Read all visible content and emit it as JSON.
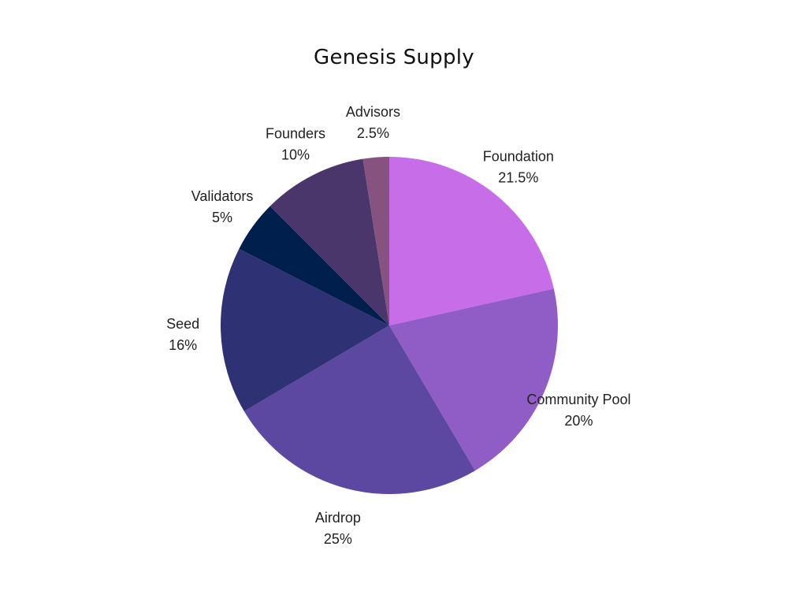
{
  "chart_data": {
    "type": "pie",
    "title": "Genesis Supply",
    "slices": [
      {
        "label": "Foundation",
        "value": 21.5,
        "display": "21.5%",
        "color": "#c86de8"
      },
      {
        "label": "Community Pool",
        "value": 20,
        "display": "20%",
        "color": "#905cc6"
      },
      {
        "label": "Airdrop",
        "value": 25,
        "display": "25%",
        "color": "#5c48a0"
      },
      {
        "label": "Seed",
        "value": 16,
        "display": "16%",
        "color": "#2e3275"
      },
      {
        "label": "Validators",
        "value": 5,
        "display": "5%",
        "color": "#011f4d"
      },
      {
        "label": "Founders",
        "value": 10,
        "display": "10%",
        "color": "#4b366b"
      },
      {
        "label": "Advisors",
        "value": 2.5,
        "display": "2.5%",
        "color": "#86527f"
      }
    ],
    "start_angle_deg": 0,
    "direction": "clockwise",
    "legend": "none"
  }
}
